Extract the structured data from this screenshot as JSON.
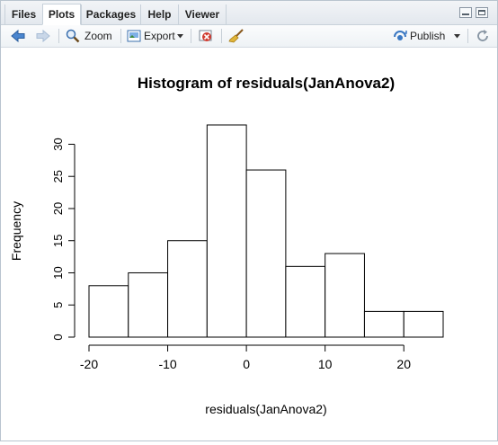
{
  "tabs": [
    {
      "label": "Files",
      "active": false
    },
    {
      "label": "Plots",
      "active": true
    },
    {
      "label": "Packages",
      "active": false
    },
    {
      "label": "Help",
      "active": false
    },
    {
      "label": "Viewer",
      "active": false
    }
  ],
  "toolbar": {
    "zoom_label": "Zoom",
    "export_label": "Export",
    "publish_label": "Publish"
  },
  "icons": {
    "back": "arrow-left-icon",
    "forward": "arrow-right-icon",
    "zoom": "magnifier-icon",
    "export": "export-image-icon",
    "remove": "remove-plot-icon",
    "clear": "broom-icon",
    "publish": "publish-icon",
    "refresh": "refresh-icon"
  },
  "colors": {
    "accent": "#3a78c3",
    "remove_red": "#d03a2f",
    "bar_fill": "#ffffff",
    "bar_stroke": "#000000"
  },
  "chart_data": {
    "type": "bar",
    "title": "Histogram of residuals(JanAnova2)",
    "xlabel": "residuals(JanAnova2)",
    "ylabel": "Frequency",
    "bins": [
      {
        "start": -20,
        "end": -15,
        "count": 8
      },
      {
        "start": -15,
        "end": -10,
        "count": 10
      },
      {
        "start": -10,
        "end": -5,
        "count": 15
      },
      {
        "start": -5,
        "end": 0,
        "count": 33
      },
      {
        "start": 0,
        "end": 5,
        "count": 26
      },
      {
        "start": 5,
        "end": 10,
        "count": 11
      },
      {
        "start": 10,
        "end": 15,
        "count": 13
      },
      {
        "start": 15,
        "end": 20,
        "count": 4
      },
      {
        "start": 20,
        "end": 25,
        "count": 4
      }
    ],
    "xticks": [
      -20,
      -10,
      0,
      10,
      20
    ],
    "yticks": [
      0,
      5,
      10,
      15,
      20,
      25,
      30
    ],
    "xlim": [
      -20,
      25
    ],
    "ylim": [
      0,
      33
    ],
    "grid": false,
    "legend": false
  }
}
